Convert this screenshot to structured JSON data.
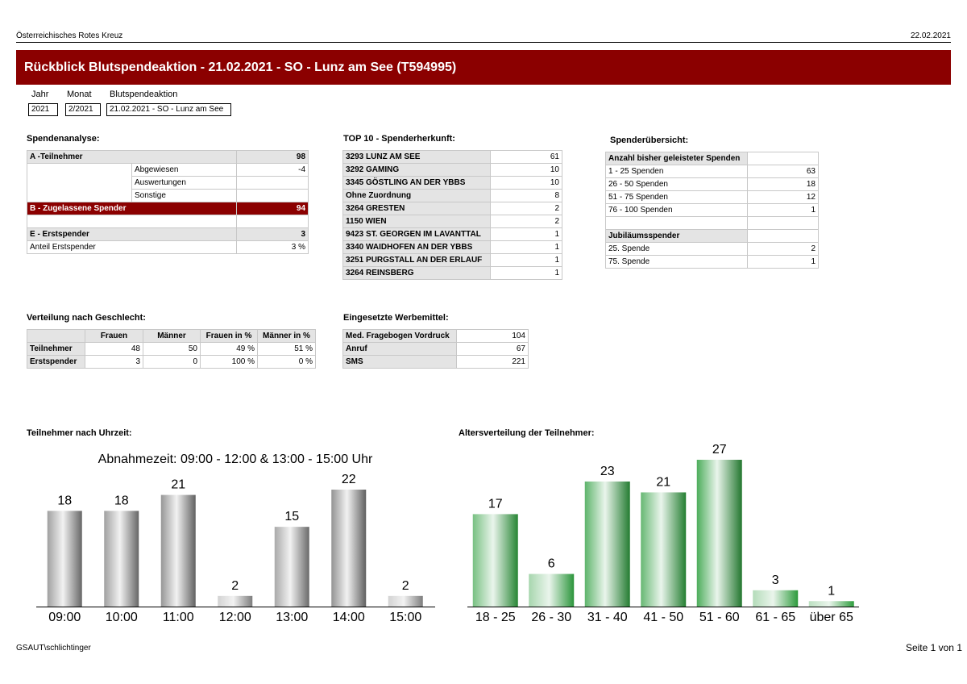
{
  "header": {
    "org": "Österreichisches Rotes Kreuz",
    "date": "22.02.2021"
  },
  "title": "Rückblick Blutspendeaktion - 21.02.2021 - SO - Lunz am See (T594995)",
  "filters": {
    "labels": {
      "year": "Jahr",
      "month": "Monat",
      "action": "Blutspendeaktion"
    },
    "values": {
      "year": "2021",
      "month": "2/2021",
      "action": "21.02.2021 - SO - Lunz am See"
    }
  },
  "spendenanalyse": {
    "title": "Spendenanalyse:",
    "a_label": "A -Teilnehmer",
    "a_value": "98",
    "abgewiesen_label": "Abgewiesen",
    "abgewiesen_value": "-4",
    "auswertungen_label": "Auswertungen",
    "auswertungen_value": "",
    "sonstige_label": "Sonstige",
    "sonstige_value": "",
    "b_label": "B - Zugelassene Spender",
    "b_value": "94",
    "e_label": "E - Erstspender",
    "e_value": "3",
    "anteil_label": "Anteil Erstspender",
    "anteil_value": "3 %"
  },
  "top10": {
    "title": "TOP 10 - Spenderherkunft:",
    "rows": [
      {
        "name": "3293 LUNZ AM SEE",
        "value": "61"
      },
      {
        "name": "3292 GAMING",
        "value": "10"
      },
      {
        "name": "3345 GÖSTLING AN DER YBBS",
        "value": "10"
      },
      {
        "name": "Ohne Zuordnung",
        "value": "8"
      },
      {
        "name": "3264 GRESTEN",
        "value": "2"
      },
      {
        "name": "1150 WIEN",
        "value": "2"
      },
      {
        "name": "9423 ST. GEORGEN IM LAVANTTAL",
        "value": "1"
      },
      {
        "name": "3340 WAIDHOFEN AN DER YBBS",
        "value": "1"
      },
      {
        "name": "3251 PURGSTALL AN DER ERLAUF",
        "value": "1"
      },
      {
        "name": "3264 REINSBERG",
        "value": "1"
      }
    ]
  },
  "uebersicht": {
    "title": "Spenderübersicht:",
    "header": "Anzahl bisher geleisteter Spenden",
    "rows": [
      {
        "label": "1 - 25 Spenden",
        "value": "63"
      },
      {
        "label": "26 - 50 Spenden",
        "value": "18"
      },
      {
        "label": "51 - 75 Spenden",
        "value": "12"
      },
      {
        "label": "76 - 100 Spenden",
        "value": "1"
      }
    ],
    "jubi_header": "Jubiläumsspender",
    "jubi_rows": [
      {
        "label": "25. Spende",
        "value": "2"
      },
      {
        "label": "75. Spende",
        "value": "1"
      }
    ]
  },
  "geschlecht": {
    "title": "Verteilung nach Geschlecht:",
    "columns": [
      "Frauen",
      "Männer",
      "Frauen in %",
      "Männer in %"
    ],
    "rows": [
      {
        "label": "Teilnehmer",
        "cells": [
          "48",
          "50",
          "49 %",
          "51 %"
        ]
      },
      {
        "label": "Erstspender",
        "cells": [
          "3",
          "0",
          "100 %",
          "0 %"
        ]
      }
    ]
  },
  "werbemittel": {
    "title": "Eingesetzte Werbemittel:",
    "rows": [
      {
        "label": "Med. Fragebogen Vordruck",
        "value": "104"
      },
      {
        "label": "Anruf",
        "value": "67"
      },
      {
        "label": "SMS",
        "value": "221"
      }
    ]
  },
  "chart_data": [
    {
      "type": "bar",
      "section_title": "Teilnehmer nach Uhrzeit:",
      "title": "Abnahmezeit: 09:00 - 12:00 & 13:00 - 15:00 Uhr",
      "categories": [
        "09:00",
        "10:00",
        "11:00",
        "12:00",
        "13:00",
        "14:00",
        "15:00"
      ],
      "values": [
        18,
        18,
        21,
        2,
        15,
        22,
        2
      ],
      "color": "#808080"
    },
    {
      "type": "bar",
      "section_title": "Altersverteilung der Teilnehmer:",
      "title": "",
      "categories": [
        "18 - 25",
        "26 - 30",
        "31 - 40",
        "41 - 50",
        "51 - 60",
        "61 - 65",
        "über 65"
      ],
      "values": [
        17,
        6,
        23,
        21,
        27,
        3,
        1
      ],
      "color": "#2e9e3e"
    }
  ],
  "footer": {
    "user": "GSAUT\\schlichtinger",
    "page": "Seite 1 von 1"
  }
}
